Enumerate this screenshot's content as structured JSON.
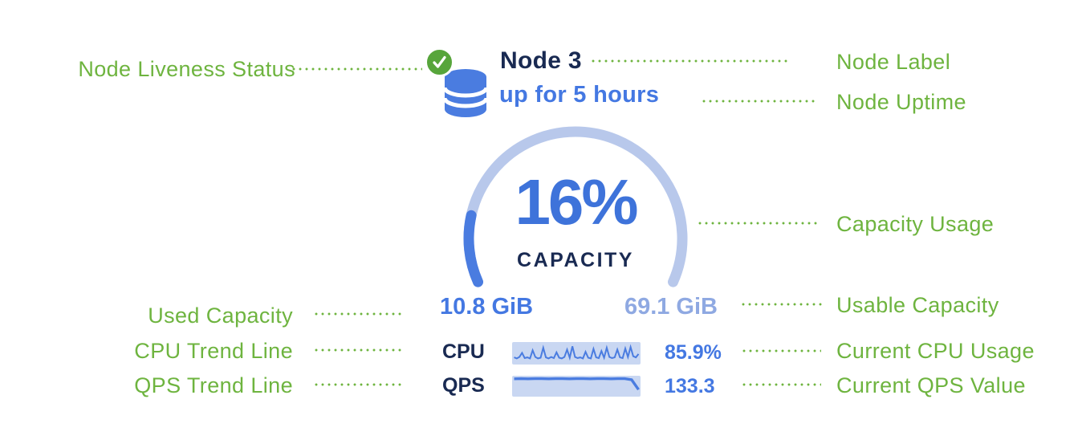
{
  "annotations_left": [
    "Node Liveness Status",
    "Used Capacity",
    "CPU Trend Line",
    "QPS Trend Line"
  ],
  "annotations_right": [
    "Node Label",
    "Node Uptime",
    "Capacity Usage",
    "Usable Capacity",
    "Current CPU Usage",
    "Current QPS Value"
  ],
  "node_card": {
    "title": "Node 3",
    "uptime": "up for 5 hours",
    "capacity_percent": 16,
    "capacity_percent_label": "16%",
    "capacity_caption": "CAPACITY",
    "used_capacity": "10.8 GiB",
    "usable_capacity": "69.1 GiB",
    "cpu_label": "CPU",
    "cpu_value": "85.9%",
    "qps_label": "QPS",
    "qps_value": "133.3"
  },
  "chart_data": [
    {
      "type": "gauge",
      "title": "CAPACITY",
      "value_percent": 16,
      "used_label": "10.8 GiB",
      "usable_label": "69.1 GiB",
      "arc_span_degrees": 228
    },
    {
      "type": "line",
      "name": "CPU trend sparkline",
      "current": "85.9%",
      "values_normalized": [
        0.28,
        0.22,
        0.3,
        0.52,
        0.24,
        0.28,
        0.22,
        0.66,
        0.3,
        0.22,
        0.26,
        0.8,
        0.28,
        0.22,
        0.3,
        0.24,
        0.55,
        0.26,
        0.22,
        0.3,
        0.7,
        0.26,
        0.88,
        0.3,
        0.24,
        0.28,
        0.22,
        0.58,
        0.26,
        0.22,
        0.74,
        0.28,
        0.24,
        0.62,
        0.26,
        0.8,
        0.3,
        0.24,
        0.28,
        0.7,
        0.28,
        0.24,
        0.76,
        0.3,
        0.84,
        0.34,
        0.28,
        0.46
      ]
    },
    {
      "type": "line",
      "name": "QPS trend sparkline",
      "current": 133.3,
      "values_normalized": [
        0.94,
        0.95,
        0.94,
        0.95,
        0.95,
        0.94,
        0.95,
        0.95,
        0.94,
        0.95,
        0.95,
        0.94,
        0.95,
        0.95,
        0.94,
        0.95,
        0.95,
        0.88,
        0.3
      ]
    }
  ],
  "colors": {
    "annotation_green": "#6eb43f",
    "liveness_green": "#57a53b",
    "navy": "#192a52",
    "blue": "#4478e2",
    "blue_pct": "#3e73da",
    "blue_dark_arc": "#4a7ce0",
    "light_arc": "#b8c8eb",
    "light_blue_text": "#8fa9e2",
    "spark_fill": "#c9d7f2",
    "db_blue": "#4a7ce0"
  }
}
